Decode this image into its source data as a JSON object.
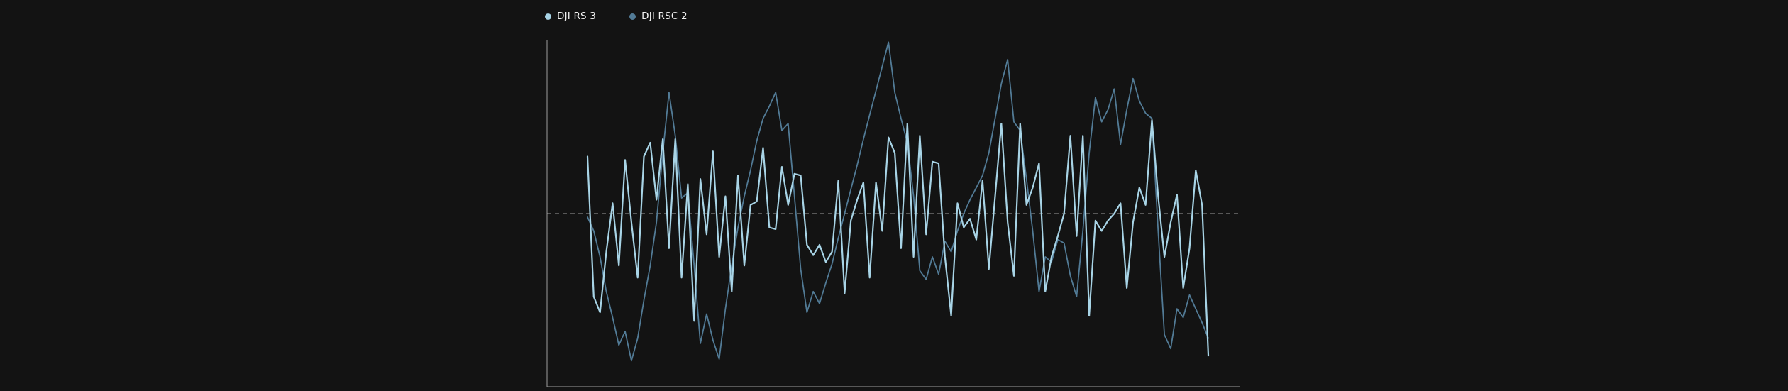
{
  "page": {
    "background_color": "#131313"
  },
  "legend": {
    "items": [
      {
        "label": "DJI RS 3",
        "color": "#a8d4e6"
      },
      {
        "label": "DJI RSC 2",
        "color": "#527b96"
      }
    ]
  },
  "chart_data": {
    "type": "line",
    "title": "",
    "xlabel": "",
    "ylabel": "",
    "x_tick_labels_visible": false,
    "y_tick_labels_visible": false,
    "grid": false,
    "legend_position": "top-left",
    "ylim": [
      -1,
      1
    ],
    "baseline": {
      "value": 0,
      "style": "dashed",
      "color": "#b5b5b5"
    },
    "axis_color": "#9c9c9c",
    "point_count": 100,
    "series": [
      {
        "name": "DJI RS 3",
        "color": "#a8d4e6",
        "line_width": 2.2,
        "values": [
          0.33,
          -0.48,
          -0.57,
          -0.22,
          0.06,
          -0.3,
          0.31,
          -0.05,
          -0.37,
          0.33,
          0.41,
          0.08,
          0.43,
          -0.2,
          0.43,
          -0.37,
          0.17,
          -0.62,
          0.2,
          -0.12,
          0.36,
          -0.25,
          0.1,
          -0.45,
          0.22,
          -0.3,
          0.05,
          0.07,
          0.38,
          -0.08,
          -0.09,
          0.27,
          0.05,
          0.23,
          0.22,
          -0.18,
          -0.24,
          -0.18,
          -0.28,
          -0.22,
          0.19,
          -0.46,
          -0.04,
          0.08,
          0.18,
          -0.37,
          0.18,
          -0.1,
          0.44,
          0.35,
          -0.2,
          0.52,
          -0.25,
          0.45,
          -0.12,
          0.3,
          0.29,
          -0.25,
          -0.59,
          0.06,
          -0.08,
          -0.03,
          -0.15,
          0.19,
          -0.32,
          0.1,
          0.52,
          -0.05,
          -0.36,
          0.52,
          0.05,
          0.15,
          0.29,
          -0.45,
          -0.25,
          -0.13,
          0.0,
          0.45,
          -0.13,
          0.45,
          -0.59,
          -0.04,
          -0.1,
          -0.04,
          0.0,
          0.06,
          -0.43,
          -0.05,
          0.15,
          0.05,
          0.54,
          0.1,
          -0.25,
          -0.05,
          0.11,
          -0.43,
          -0.2,
          0.25,
          0.05,
          -0.82
        ]
      },
      {
        "name": "DJI RSC 2",
        "color": "#527b96",
        "line_width": 1.8,
        "values": [
          -0.02,
          -0.1,
          -0.25,
          -0.45,
          -0.6,
          -0.76,
          -0.68,
          -0.85,
          -0.72,
          -0.5,
          -0.3,
          -0.05,
          0.35,
          0.7,
          0.45,
          0.09,
          0.12,
          -0.3,
          -0.75,
          -0.58,
          -0.73,
          -0.84,
          -0.55,
          -0.3,
          -0.08,
          0.1,
          0.25,
          0.42,
          0.55,
          0.62,
          0.7,
          0.48,
          0.52,
          0.1,
          -0.32,
          -0.57,
          -0.45,
          -0.52,
          -0.4,
          -0.29,
          -0.14,
          0.0,
          0.14,
          0.28,
          0.43,
          0.57,
          0.71,
          0.85,
          0.99,
          0.7,
          0.55,
          0.41,
          0.1,
          -0.33,
          -0.38,
          -0.25,
          -0.35,
          -0.16,
          -0.22,
          -0.1,
          0.0,
          0.08,
          0.15,
          0.22,
          0.35,
          0.55,
          0.75,
          0.89,
          0.53,
          0.48,
          0.2,
          -0.1,
          -0.45,
          -0.25,
          -0.28,
          -0.15,
          -0.17,
          -0.36,
          -0.48,
          -0.1,
          0.35,
          0.67,
          0.53,
          0.6,
          0.72,
          0.4,
          0.6,
          0.78,
          0.65,
          0.58,
          0.55,
          -0.1,
          -0.7,
          -0.78,
          -0.55,
          -0.6,
          -0.47,
          -0.55,
          -0.63,
          -0.72
        ]
      }
    ]
  }
}
